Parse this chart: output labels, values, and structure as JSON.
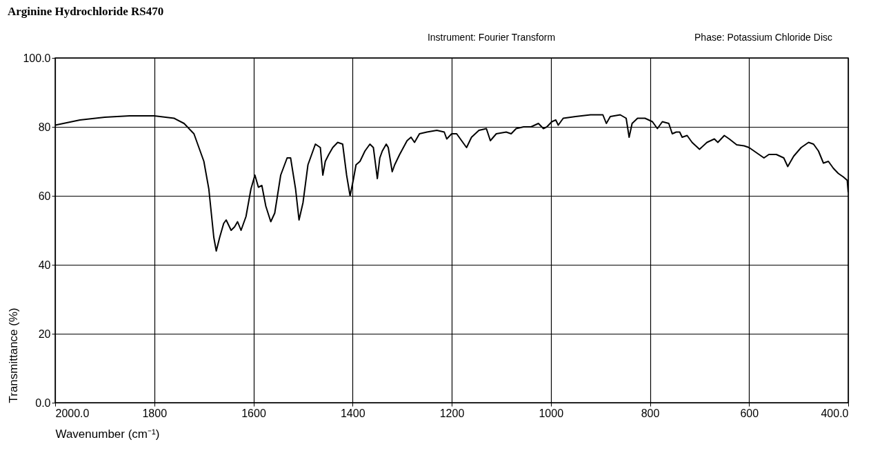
{
  "chart_data": {
    "type": "line",
    "title": "Arginine Hydrochloride RS470",
    "xlabel": "Wavenumber (cm⁻¹)",
    "ylabel": "Transmittance (%)",
    "annotations": [
      "Instrument: Fourier Transform",
      "Phase: Potassium Chloride Disc"
    ],
    "xlim": [
      2000,
      400
    ],
    "ylim": [
      0,
      100
    ],
    "xticks": [
      {
        "value": 2000,
        "label": "2000.0"
      },
      1800,
      1600,
      1400,
      1200,
      1000,
      800,
      600,
      {
        "value": 400,
        "label": "400.0"
      }
    ],
    "yticks": [
      {
        "value": 0,
        "label": "0.0"
      },
      20,
      40,
      60,
      80,
      {
        "value": 100,
        "label": "100.0"
      }
    ],
    "grid": true,
    "marker": "none",
    "line_style": "solid",
    "series": [
      {
        "color": "#000000",
        "x": [
          2000,
          1950,
          1900,
          1850,
          1800,
          1760,
          1740,
          1720,
          1700,
          1690,
          1685,
          1680,
          1675,
          1668,
          1660,
          1655,
          1645,
          1638,
          1632,
          1625,
          1615,
          1605,
          1597,
          1590,
          1583,
          1575,
          1565,
          1557,
          1545,
          1532,
          1525,
          1515,
          1508,
          1500,
          1490,
          1475,
          1465,
          1460,
          1455,
          1448,
          1440,
          1430,
          1420,
          1412,
          1405,
          1398,
          1393,
          1385,
          1375,
          1365,
          1358,
          1350,
          1345,
          1340,
          1332,
          1328,
          1320,
          1315,
          1305,
          1290,
          1282,
          1275,
          1265,
          1250,
          1230,
          1215,
          1210,
          1200,
          1190,
          1180,
          1170,
          1160,
          1145,
          1130,
          1122,
          1110,
          1090,
          1080,
          1070,
          1055,
          1040,
          1025,
          1015,
          1008,
          998,
          990,
          985,
          975,
          950,
          920,
          895,
          888,
          880,
          860,
          848,
          842,
          836,
          825,
          810,
          795,
          785,
          775,
          762,
          755,
          747,
          740,
          735,
          725,
          715,
          700,
          685,
          670,
          663,
          650,
          640,
          625,
          610,
          600,
          585,
          570,
          560,
          545,
          530,
          522,
          510,
          495,
          480,
          470,
          460,
          450,
          440,
          430,
          420,
          410,
          402,
          400
        ],
        "values": [
          80.5,
          82,
          82.8,
          83.2,
          83.2,
          82.5,
          81,
          78,
          70,
          62,
          55,
          48,
          44,
          48,
          52,
          53,
          50,
          51,
          52.5,
          50,
          54,
          62,
          66,
          62.5,
          63,
          57,
          52.5,
          55,
          66,
          71,
          71,
          62,
          53,
          58,
          69,
          75,
          74,
          66,
          70,
          72,
          74,
          75.5,
          75,
          66,
          60,
          65,
          69,
          70,
          73,
          75,
          74,
          65,
          71,
          73,
          75,
          74,
          67,
          69,
          72,
          76,
          77,
          75.5,
          78,
          78.5,
          79,
          78.5,
          76.5,
          78,
          78,
          76,
          74,
          77,
          79,
          79.5,
          76,
          78,
          78.5,
          78,
          79.5,
          80,
          80,
          81,
          79.5,
          80,
          81.5,
          82,
          80.5,
          82.5,
          83,
          83.5,
          83.5,
          81,
          83,
          83.5,
          82.5,
          77,
          81,
          82.5,
          82.5,
          81.5,
          79.5,
          81.5,
          81,
          78,
          78.5,
          78.5,
          77,
          77.5,
          75.5,
          73.5,
          75.5,
          76.5,
          75.5,
          77.5,
          76.5,
          74.8,
          74.5,
          74,
          72.5,
          71,
          72,
          72,
          71,
          68.5,
          71.5,
          74,
          75.5,
          75,
          73,
          69.5,
          70,
          68,
          66.5,
          65.5,
          64.5,
          61
        ]
      }
    ]
  }
}
